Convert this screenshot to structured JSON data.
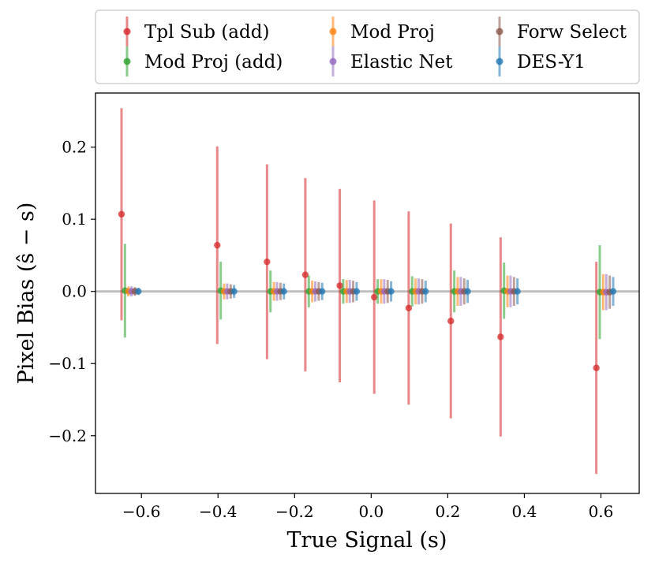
{
  "chart_data": {
    "type": "errorbar",
    "title": "",
    "xlabel": "True Signal (s)",
    "ylabel": "Pixel Bias (ŝ − s)",
    "xlim": [
      -0.72,
      0.7
    ],
    "ylim": [
      -0.28,
      0.275
    ],
    "x_ticks": [
      -0.6,
      -0.4,
      -0.2,
      0.0,
      0.2,
      0.4,
      0.6
    ],
    "x_tick_labels": [
      "−0.6",
      "−0.4",
      "−0.2",
      "0.0",
      "0.2",
      "0.4",
      "0.6"
    ],
    "y_ticks": [
      -0.2,
      -0.1,
      0.0,
      0.1,
      0.2
    ],
    "y_tick_labels": [
      "−0.2",
      "−0.1",
      "0.0",
      "0.1",
      "0.2"
    ],
    "reference_line_y": 0.0,
    "legend_position": "top, above plot, 3 columns",
    "true_signal_bins": [
      -0.63,
      -0.38,
      -0.25,
      -0.15,
      -0.06,
      0.03,
      0.12,
      0.23,
      0.36,
      0.61
    ],
    "series": [
      {
        "name": "Tpl Sub (add)",
        "color": "#d62728",
        "offset": -0.022,
        "y": [
          0.107,
          0.064,
          0.041,
          0.023,
          0.008,
          -0.008,
          -0.023,
          -0.041,
          -0.063,
          -0.106
        ],
        "err": [
          0.147,
          0.137,
          0.135,
          0.134,
          0.134,
          0.134,
          0.134,
          0.135,
          0.138,
          0.147
        ]
      },
      {
        "name": "Mod Proj (add)",
        "color": "#2ca02c",
        "offset": -0.013,
        "y": [
          0.001,
          0.001,
          0.0,
          0.0,
          0.0,
          0.0,
          0.0,
          0.0,
          0.001,
          -0.001
        ],
        "err": [
          0.065,
          0.04,
          0.029,
          0.022,
          0.017,
          0.017,
          0.021,
          0.029,
          0.039,
          0.065
        ]
      },
      {
        "name": "Mod Proj",
        "color": "#ff7f0e",
        "offset": -0.004,
        "y": [
          0.0,
          0.0,
          0.0,
          0.0,
          0.0,
          0.0,
          0.0,
          0.0,
          0.0,
          -0.001
        ],
        "err": [
          0.007,
          0.011,
          0.013,
          0.015,
          0.016,
          0.017,
          0.018,
          0.02,
          0.022,
          0.025
        ]
      },
      {
        "name": "Elastic Net",
        "color": "#9467bd",
        "offset": 0.004,
        "y": [
          0.0,
          0.0,
          0.0,
          0.0,
          0.0,
          0.0,
          0.0,
          0.0,
          0.0,
          -0.001
        ],
        "err": [
          0.007,
          0.011,
          0.013,
          0.014,
          0.016,
          0.017,
          0.018,
          0.02,
          0.022,
          0.025
        ]
      },
      {
        "name": "Forw Select",
        "color": "#8c564b",
        "offset": 0.013,
        "y": [
          0.0,
          0.0,
          0.0,
          0.0,
          0.0,
          0.0,
          0.0,
          0.0,
          0.0,
          -0.001
        ],
        "err": [
          0.006,
          0.01,
          0.012,
          0.013,
          0.015,
          0.016,
          0.017,
          0.018,
          0.02,
          0.023
        ]
      },
      {
        "name": "DES-Y1",
        "color": "#1f77b4",
        "offset": 0.022,
        "y": [
          0.0,
          0.0,
          0.0,
          0.0,
          0.0,
          0.0,
          0.0,
          0.0,
          0.0,
          0.0
        ],
        "err": [
          0.005,
          0.009,
          0.011,
          0.012,
          0.013,
          0.014,
          0.015,
          0.016,
          0.018,
          0.02
        ]
      }
    ],
    "legend_order": [
      "Tpl Sub (add)",
      "Mod Proj",
      "Forw Select",
      "Mod Proj (add)",
      "Elastic Net",
      "DES-Y1"
    ]
  }
}
